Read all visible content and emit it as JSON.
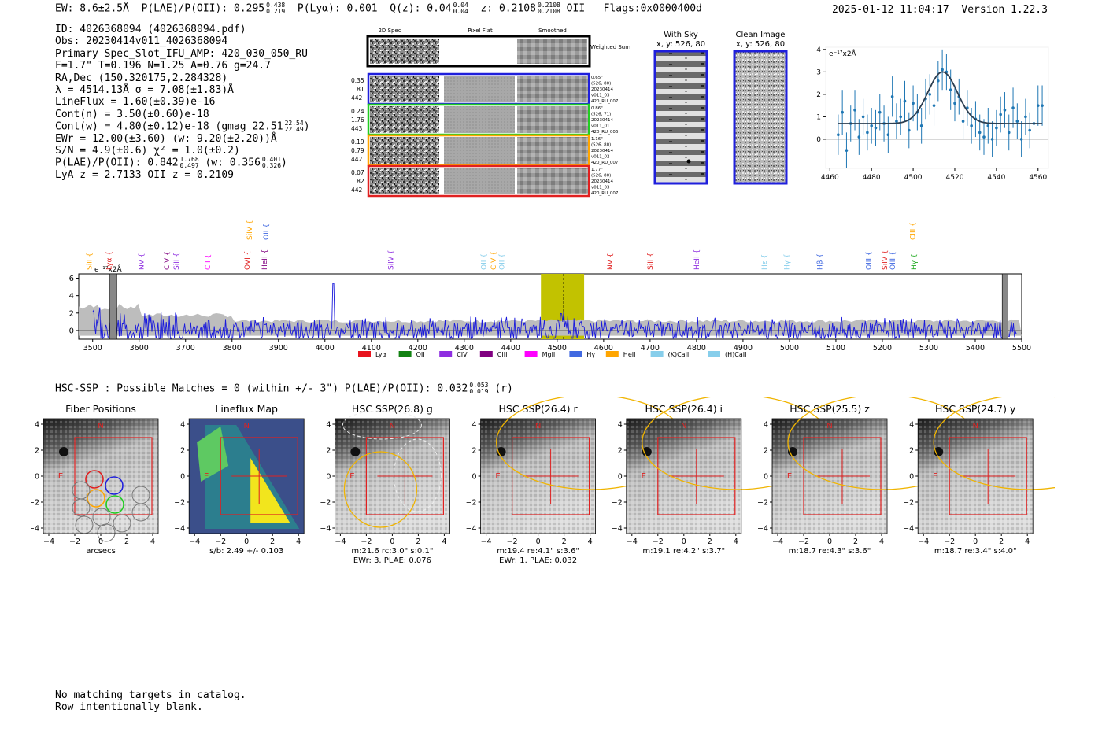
{
  "header": {
    "ew_label": "EW: 8.6±2.5Å",
    "plae_label": "P(LAE)/P(OII): 0.295",
    "plae_hi": "0.438",
    "plae_lo": "0.219",
    "plya_label": "P(Lyα): 0.001",
    "q_label": "Q(z): 0.04",
    "q_hi": "0.04",
    "q_lo": "0.04",
    "z_label": "z: 0.2108",
    "z_hi": "0.2108",
    "z_lo": "0.2108",
    "z_line": "OII",
    "flags": "Flags:0x0000400d",
    "timestamp": "2025-01-12 11:04:17",
    "version": "Version 1.22.3"
  },
  "info": {
    "id": "ID: 4026368094 (4026368094.pdf)",
    "obs": "Obs: 20230414v011_4026368094",
    "primary": "Primary Spec_Slot_IFU_AMP: 420_030_050_RU",
    "conditions": "F=1.7\"  T=0.196  N=1.25  A=0.76  g=24.7",
    "radec": "RA,Dec (150.320175,2.284328)",
    "wave": "λ = 4514.13Å  σ = 7.08(±1.83)Å",
    "lineflux": "LineFlux = 1.60(±0.39)e-16",
    "cont_n": "Cont(n) = 3.50(±0.60)e-18",
    "cont_w": "Cont(w) = 4.80(±0.12)e-18 (gmag 22.51",
    "gmag_hi": "22.54",
    "gmag_lo": "22.49",
    "ewr": "EWr = 12.00(±3.60) (w: 9.20(±2.20))Å",
    "sn": "S/N = 4.9(±0.6)  χ² = 1.0(±0.2)",
    "plae": "P(LAE)/P(OII): 0.842",
    "plae_hi": "1.768",
    "plae_lo": "0.497",
    "plae_w": "(w: 0.356",
    "plae_w_hi": "0.401",
    "plae_w_lo": "0.326",
    "lya_z": "LyA z = 2.7133   OII z = 0.2109"
  },
  "spec_cutouts": {
    "columns": [
      "2D Spec",
      "Pixel Flat",
      "Smoothed"
    ],
    "weighted_label": "Weighted Sum",
    "rows": [
      {
        "left": [
          "0.35",
          "1.81",
          "442"
        ],
        "right": [
          "0.65\"",
          "(526, 80)",
          "20230414",
          "v011_03",
          "420_RU_007"
        ],
        "color": "#1f1fdc"
      },
      {
        "left": [
          "0.24",
          "1.76",
          "443"
        ],
        "right": [
          "0.86\"",
          "(526, 71)",
          "20230414",
          "v011_01",
          "420_RU_006"
        ],
        "color": "#22cc22"
      },
      {
        "left": [
          "0.19",
          "0.79",
          "442"
        ],
        "right": [
          "1.16\"",
          "(526, 80)",
          "20230414",
          "v011_02",
          "420_RU_007"
        ],
        "color": "#ffa500"
      },
      {
        "left": [
          "0.07",
          "1.82",
          "442"
        ],
        "right": [
          "1.77\"",
          "(526, 80)",
          "20230414",
          "v011_03",
          "420_RU_007"
        ],
        "color": "#e02020"
      }
    ]
  },
  "sky_panels": [
    {
      "title": "With Sky",
      "subtitle": "x, y: 526, 80"
    },
    {
      "title": "Clean Image",
      "subtitle": "x, y: 526, 80"
    }
  ],
  "chart_data": [
    {
      "type": "line",
      "name": "line-fit",
      "ylabel": "e⁻¹⁷x2Å",
      "xlim": [
        4458,
        4565
      ],
      "ylim": [
        -1.3,
        4.1
      ],
      "xticks": [
        4460,
        4480,
        4500,
        4520,
        4540,
        4560
      ],
      "yticks": [
        0,
        1,
        2,
        3,
        4
      ],
      "points": [
        {
          "x": 4464,
          "y": 0.2,
          "e": 0.9
        },
        {
          "x": 4466,
          "y": 1.2,
          "e": 1.0
        },
        {
          "x": 4468,
          "y": -0.5,
          "e": 0.8
        },
        {
          "x": 4470,
          "y": 0.7,
          "e": 0.8
        },
        {
          "x": 4472,
          "y": 1.3,
          "e": 0.9
        },
        {
          "x": 4474,
          "y": 0.1,
          "e": 0.8
        },
        {
          "x": 4476,
          "y": 1.0,
          "e": 0.8
        },
        {
          "x": 4478,
          "y": 0.3,
          "e": 0.8
        },
        {
          "x": 4480,
          "y": 0.6,
          "e": 0.8
        },
        {
          "x": 4482,
          "y": 0.5,
          "e": 0.8
        },
        {
          "x": 4484,
          "y": 1.2,
          "e": 0.8
        },
        {
          "x": 4486,
          "y": 0.7,
          "e": 0.8
        },
        {
          "x": 4488,
          "y": 0.2,
          "e": 0.8
        },
        {
          "x": 4490,
          "y": 1.9,
          "e": 0.9
        },
        {
          "x": 4492,
          "y": 0.8,
          "e": 0.8
        },
        {
          "x": 4494,
          "y": 1.0,
          "e": 0.8
        },
        {
          "x": 4496,
          "y": 1.7,
          "e": 0.9
        },
        {
          "x": 4498,
          "y": 0.4,
          "e": 0.8
        },
        {
          "x": 4500,
          "y": 1.6,
          "e": 0.8
        },
        {
          "x": 4502,
          "y": 1.2,
          "e": 0.8
        },
        {
          "x": 4504,
          "y": 0.6,
          "e": 0.8
        },
        {
          "x": 4506,
          "y": 1.8,
          "e": 0.9
        },
        {
          "x": 4508,
          "y": 2.0,
          "e": 0.9
        },
        {
          "x": 4510,
          "y": 1.5,
          "e": 0.9
        },
        {
          "x": 4512,
          "y": 2.6,
          "e": 0.9
        },
        {
          "x": 4514,
          "y": 3.1,
          "e": 0.9
        },
        {
          "x": 4516,
          "y": 3.0,
          "e": 0.8
        },
        {
          "x": 4518,
          "y": 2.2,
          "e": 0.9
        },
        {
          "x": 4520,
          "y": 1.6,
          "e": 0.8
        },
        {
          "x": 4522,
          "y": 1.9,
          "e": 0.8
        },
        {
          "x": 4524,
          "y": 0.8,
          "e": 0.8
        },
        {
          "x": 4526,
          "y": 1.4,
          "e": 0.8
        },
        {
          "x": 4528,
          "y": 0.6,
          "e": 0.8
        },
        {
          "x": 4530,
          "y": 0.9,
          "e": 0.8
        },
        {
          "x": 4532,
          "y": 0.3,
          "e": 0.8
        },
        {
          "x": 4534,
          "y": 0.1,
          "e": 0.8
        },
        {
          "x": 4536,
          "y": 0.6,
          "e": 0.8
        },
        {
          "x": 4538,
          "y": 0.0,
          "e": 0.8
        },
        {
          "x": 4540,
          "y": 0.5,
          "e": 0.8
        },
        {
          "x": 4542,
          "y": 1.1,
          "e": 0.8
        },
        {
          "x": 4544,
          "y": 1.3,
          "e": 0.8
        },
        {
          "x": 4546,
          "y": 0.3,
          "e": 0.8
        },
        {
          "x": 4548,
          "y": 1.4,
          "e": 0.9
        },
        {
          "x": 4550,
          "y": 0.8,
          "e": 0.8
        },
        {
          "x": 4552,
          "y": 0.0,
          "e": 0.8
        },
        {
          "x": 4554,
          "y": 1.0,
          "e": 0.8
        },
        {
          "x": 4556,
          "y": 0.4,
          "e": 0.8
        },
        {
          "x": 4558,
          "y": 0.7,
          "e": 0.8
        },
        {
          "x": 4560,
          "y": 1.5,
          "e": 0.9
        },
        {
          "x": 4562,
          "y": 1.5,
          "e": 0.9
        }
      ],
      "fit": {
        "continuum": 0.7,
        "amplitude": 2.3,
        "center": 4514.13,
        "sigma": 7.08
      }
    },
    {
      "type": "line",
      "name": "full-spectrum",
      "ylabel": "e⁻¹⁷x2Å",
      "xlim": [
        3470,
        5500
      ],
      "ylim": [
        -1.0,
        6.5
      ],
      "xticks": [
        3500,
        3600,
        3700,
        3800,
        3900,
        4000,
        4100,
        4200,
        4300,
        4400,
        4500,
        4600,
        4700,
        4800,
        4900,
        5000,
        5100,
        5200,
        5300,
        5400,
        5500
      ],
      "yticks": [
        0,
        2,
        4,
        6
      ],
      "highlight": [
        4465,
        4558
      ],
      "line_center": 4514,
      "lines": [
        {
          "label": "SiII",
          "x": 3493,
          "color": "#ffa500",
          "tier": 0
        },
        {
          "label": "Lyα",
          "x": 3535,
          "color": "#e02020",
          "tier": 0
        },
        {
          "label": "NV",
          "x": 3605,
          "color": "#8e2ee0",
          "tier": 0
        },
        {
          "label": "CIV",
          "x": 3660,
          "color": "#800080",
          "tier": 0
        },
        {
          "label": "SiII",
          "x": 3680,
          "color": "#8e2ee0",
          "tier": 0
        },
        {
          "label": "CII",
          "x": 3748,
          "color": "#ff00ff",
          "tier": 0
        },
        {
          "label": "OVI",
          "x": 3833,
          "color": "#e02020",
          "tier": 0
        },
        {
          "label": "SiIV",
          "x": 3838,
          "color": "#ffa500",
          "tier": 1
        },
        {
          "label": "HeII",
          "x": 3870,
          "color": "#800080",
          "tier": 0
        },
        {
          "label": "OII",
          "x": 3873,
          "color": "#4169e1",
          "tier": 1
        },
        {
          "label": "SiIV",
          "x": 4142,
          "color": "#8e2ee0",
          "tier": 0
        },
        {
          "label": "OII",
          "x": 4342,
          "color": "#87ceeb",
          "tier": 0
        },
        {
          "label": "CIV",
          "x": 4363,
          "color": "#ffa500",
          "tier": 0
        },
        {
          "label": "OII",
          "x": 4381,
          "color": "#87ceeb",
          "tier": 0
        },
        {
          "label": "NV",
          "x": 4614,
          "color": "#e02020",
          "tier": 0
        },
        {
          "label": "SiII",
          "x": 4700,
          "color": "#e02020",
          "tier": 0
        },
        {
          "label": "HeII",
          "x": 4800,
          "color": "#8e2ee0",
          "tier": 0
        },
        {
          "label": "Hε",
          "x": 4946,
          "color": "#87ceeb",
          "tier": 0
        },
        {
          "label": "Hγ",
          "x": 4994,
          "color": "#87ceeb",
          "tier": 0
        },
        {
          "label": "Hβ",
          "x": 5065,
          "color": "#4169e1",
          "tier": 0
        },
        {
          "label": "OIII",
          "x": 5170,
          "color": "#4169e1",
          "tier": 0
        },
        {
          "label": "SiIV",
          "x": 5205,
          "color": "#e02020",
          "tier": 0
        },
        {
          "label": "OIII",
          "x": 5222,
          "color": "#4169e1",
          "tier": 0
        },
        {
          "label": "CIII",
          "x": 5265,
          "color": "#ffa500",
          "tier": 1
        },
        {
          "label": "Hγ",
          "x": 5268,
          "color": "#22aa22",
          "tier": 0
        }
      ],
      "legend": [
        {
          "label": "Lyα",
          "color": "#e8141e"
        },
        {
          "label": "OII",
          "color": "#128212"
        },
        {
          "label": "CIV",
          "color": "#8e2ee0"
        },
        {
          "label": "CIII",
          "color": "#800080"
        },
        {
          "label": "MgII",
          "color": "#ff00ff"
        },
        {
          "label": "Hγ",
          "color": "#4169e1"
        },
        {
          "label": "HeII",
          "color": "#ffa500"
        },
        {
          "label": "(K)CaII",
          "color": "#87ceeb"
        },
        {
          "label": "(H)CaII",
          "color": "#87ceeb"
        }
      ]
    }
  ],
  "hsc": {
    "summary": "HSC-SSP : Possible Matches = 0 (within +/- 3\")  P(LAE)/P(OII): 0.032",
    "summary_hi": "0.053",
    "summary_lo": "0.019",
    "summary_band": "(r)",
    "axis_ticks": [
      -4,
      -2,
      0,
      2,
      4
    ],
    "panels": [
      {
        "title": "Fiber Positions",
        "caption1": "arcsecs",
        "caption2": ""
      },
      {
        "title": "Lineflux Map",
        "caption1": "s/b: 2.49 +/- 0.103",
        "caption2": ""
      },
      {
        "title": "HSC SSP(26.8) g",
        "caption1": "m:21.6 rc:3.0\"  s:0.1\"",
        "caption2": "EWr: 3. PLAE: 0.076"
      },
      {
        "title": "HSC SSP(26.4) r",
        "caption1": "m:19.4  re:4.1\"  s:3.6\"",
        "caption2": "EWr: 1. PLAE: 0.032"
      },
      {
        "title": "HSC SSP(26.4) i",
        "caption1": "m:19.1  re:4.2\"  s:3.7\"",
        "caption2": ""
      },
      {
        "title": "HSC SSP(25.5) z",
        "caption1": "m:18.7  re:4.3\"  s:3.6\"",
        "caption2": ""
      },
      {
        "title": "HSC SSP(24.7) y",
        "caption1": "m:18.7  re:3.4\"  s:4.0\"",
        "caption2": ""
      }
    ],
    "north": "N",
    "east": "E"
  },
  "footer": {
    "line1": "No matching targets in catalog.",
    "line2": "Row intentionally blank."
  }
}
